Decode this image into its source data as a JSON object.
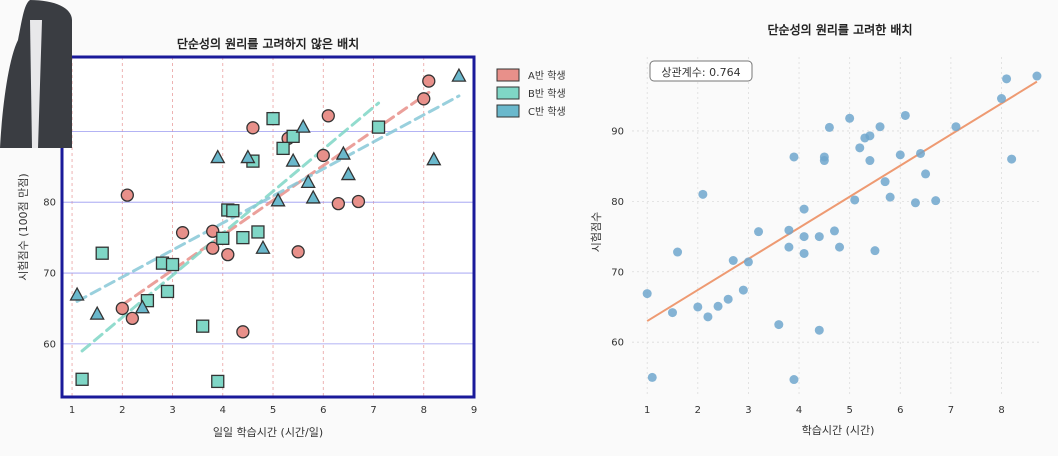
{
  "chart_data": [
    {
      "type": "scatter",
      "title": "단순성의 원리를 고려하지 않은 배치",
      "xlabel": "일일 학습시간 (시간/일)",
      "ylabel": "시험점수 (100점 만점)",
      "xlim": [
        0.8,
        9.0
      ],
      "ylim": [
        52.5,
        100.5
      ],
      "xticks": [
        "1",
        "2",
        "3",
        "4",
        "5",
        "6",
        "7",
        "8",
        "9"
      ],
      "yticks": [
        "60",
        "70",
        "80",
        "90"
      ],
      "grid": "x red dashed, y blue solid",
      "legend_position": "outside-right",
      "series": [
        {
          "name": "A반 학생",
          "marker": "circle",
          "color": "#e8908a",
          "points": [
            [
              2.1,
              81.0
            ],
            [
              2.0,
              65.0
            ],
            [
              2.2,
              63.6
            ],
            [
              3.2,
              75.7
            ],
            [
              3.8,
              75.9
            ],
            [
              3.8,
              73.5
            ],
            [
              4.1,
              72.6
            ],
            [
              4.4,
              61.7
            ],
            [
              4.6,
              90.5
            ],
            [
              5.3,
              89.0
            ],
            [
              5.5,
              73.0
            ],
            [
              6.0,
              86.6
            ],
            [
              6.1,
              92.2
            ],
            [
              6.3,
              79.8
            ],
            [
              6.7,
              80.1
            ],
            [
              8.0,
              94.6
            ],
            [
              8.1,
              97.1
            ]
          ]
        },
        {
          "name": "B반 학생",
          "marker": "square",
          "color": "#7fd6c6",
          "points": [
            [
              1.2,
              55.0
            ],
            [
              1.6,
              72.8
            ],
            [
              2.5,
              66.1
            ],
            [
              2.8,
              71.4
            ],
            [
              2.9,
              67.4
            ],
            [
              3.0,
              71.2
            ],
            [
              3.6,
              62.5
            ],
            [
              3.9,
              54.7
            ],
            [
              4.0,
              74.9
            ],
            [
              4.1,
              78.9
            ],
            [
              4.2,
              78.8
            ],
            [
              4.4,
              75.0
            ],
            [
              4.6,
              85.8
            ],
            [
              4.7,
              75.8
            ],
            [
              5.0,
              91.8
            ],
            [
              5.2,
              87.6
            ],
            [
              5.4,
              89.3
            ],
            [
              7.1,
              90.6
            ]
          ]
        },
        {
          "name": "C반 학생",
          "marker": "triangle",
          "color": "#6ab8cc",
          "points": [
            [
              1.1,
              66.9
            ],
            [
              1.5,
              64.2
            ],
            [
              2.4,
              65.1
            ],
            [
              3.9,
              86.3
            ],
            [
              4.5,
              86.3
            ],
            [
              4.8,
              73.5
            ],
            [
              5.1,
              80.2
            ],
            [
              5.4,
              85.8
            ],
            [
              5.6,
              90.6
            ],
            [
              5.7,
              82.8
            ],
            [
              5.8,
              80.6
            ],
            [
              6.4,
              86.8
            ],
            [
              6.5,
              83.9
            ],
            [
              8.2,
              86.0
            ],
            [
              8.7,
              97.8
            ]
          ]
        }
      ],
      "trendlines": [
        {
          "series": "A반 학생",
          "color": "#e8908a",
          "from": [
            2.0,
            65.5
          ],
          "to": [
            8.1,
            95.5
          ]
        },
        {
          "series": "B반 학생",
          "color": "#7fd6c6",
          "from": [
            1.2,
            59.0
          ],
          "to": [
            7.1,
            94.0
          ]
        },
        {
          "series": "C반 학생",
          "color": "#88c8d8",
          "from": [
            1.1,
            66.0
          ],
          "to": [
            8.7,
            95.0
          ]
        }
      ]
    },
    {
      "type": "scatter",
      "title": "단순성의 원리를 고려한 배치",
      "xlabel": "학습시간 (시간)",
      "ylabel": "시험점수",
      "annotation": "상관계수: 0.764",
      "xlim": [
        0.7,
        8.8
      ],
      "ylim": [
        52.5,
        100.5
      ],
      "xticks": [
        "1",
        "2",
        "3",
        "4",
        "5",
        "6",
        "7",
        "8"
      ],
      "yticks": [
        "60",
        "70",
        "80",
        "90"
      ],
      "grid": "light dotted",
      "point_color": "#6fa6cc",
      "points": [
        [
          1.1,
          55.0
        ],
        [
          1.0,
          66.9
        ],
        [
          1.5,
          64.2
        ],
        [
          1.6,
          72.8
        ],
        [
          2.0,
          65.0
        ],
        [
          2.1,
          81.0
        ],
        [
          2.2,
          63.6
        ],
        [
          2.4,
          65.1
        ],
        [
          2.6,
          66.1
        ],
        [
          2.7,
          71.6
        ],
        [
          2.9,
          67.4
        ],
        [
          3.0,
          71.4
        ],
        [
          3.2,
          75.7
        ],
        [
          3.6,
          62.5
        ],
        [
          3.8,
          75.9
        ],
        [
          3.8,
          73.5
        ],
        [
          3.9,
          54.7
        ],
        [
          3.9,
          86.3
        ],
        [
          4.1,
          72.6
        ],
        [
          4.1,
          78.9
        ],
        [
          4.1,
          75.0
        ],
        [
          4.4,
          61.7
        ],
        [
          4.4,
          75.0
        ],
        [
          4.5,
          86.3
        ],
        [
          4.5,
          85.8
        ],
        [
          4.6,
          90.5
        ],
        [
          4.7,
          75.8
        ],
        [
          4.8,
          73.5
        ],
        [
          5.0,
          91.8
        ],
        [
          5.1,
          80.2
        ],
        [
          5.2,
          87.6
        ],
        [
          5.3,
          89.0
        ],
        [
          5.4,
          89.3
        ],
        [
          5.4,
          85.8
        ],
        [
          5.5,
          73.0
        ],
        [
          5.6,
          90.6
        ],
        [
          5.7,
          82.8
        ],
        [
          5.8,
          80.6
        ],
        [
          6.0,
          86.6
        ],
        [
          6.1,
          92.2
        ],
        [
          6.3,
          79.8
        ],
        [
          6.4,
          86.8
        ],
        [
          6.5,
          83.9
        ],
        [
          6.7,
          80.1
        ],
        [
          7.1,
          90.6
        ],
        [
          8.0,
          94.6
        ],
        [
          8.1,
          97.4
        ],
        [
          8.2,
          86.0
        ],
        [
          8.7,
          97.8
        ]
      ],
      "trendline": {
        "color": "#ee9a72",
        "from": [
          1.0,
          63.0
        ],
        "to": [
          8.7,
          97.0
        ]
      }
    }
  ]
}
